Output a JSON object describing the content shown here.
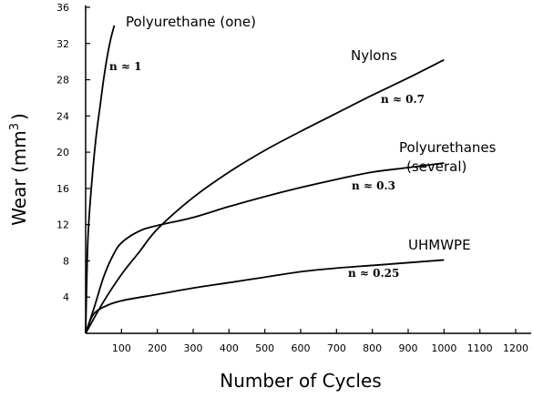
{
  "chart_data": {
    "type": "line",
    "xlabel": "Number of Cycles",
    "ylabel": "Wear (mm",
    "ylabel_sup": "3",
    "ylabel_close": ")",
    "xlim": [
      0,
      1200
    ],
    "ylim": [
      0,
      36
    ],
    "xticks": [
      100,
      200,
      300,
      400,
      500,
      600,
      700,
      800,
      900,
      1000,
      1100,
      1200
    ],
    "yticks": [
      4,
      8,
      12,
      16,
      20,
      24,
      28,
      32,
      36
    ],
    "grid": false,
    "series": [
      {
        "name": "Polyurethane (one)",
        "label_lines": [
          "Polyurethane (one)"
        ],
        "exponent": "n ≈ 1",
        "x": [
          0,
          5,
          10,
          20,
          30,
          40,
          50,
          60,
          70,
          80
        ],
        "y": [
          0,
          9,
          13,
          18,
          22,
          25,
          28,
          30.5,
          32.5,
          34
        ]
      },
      {
        "name": "Nylons",
        "label_lines": [
          "Nylons"
        ],
        "exponent": "n ≈ 0.7",
        "x": [
          0,
          50,
          100,
          150,
          200,
          300,
          400,
          500,
          600,
          700,
          800,
          900,
          1000
        ],
        "y": [
          0,
          3.5,
          6.5,
          9,
          11.5,
          15,
          17.8,
          20.2,
          22.3,
          24.3,
          26.3,
          28.2,
          30.2
        ]
      },
      {
        "name": "Polyurethanes (several)",
        "label_lines": [
          "Polyurethanes",
          "(several)"
        ],
        "exponent": "n ≈ 0.3",
        "x": [
          0,
          25,
          50,
          75,
          100,
          150,
          200,
          300,
          400,
          500,
          600,
          700,
          800,
          900,
          1000
        ],
        "y": [
          0,
          3,
          6.2,
          8.5,
          10,
          11.3,
          11.9,
          12.8,
          14,
          15.1,
          16.1,
          17,
          17.8,
          18.3,
          18.8
        ]
      },
      {
        "name": "UHMWPE",
        "label_lines": [
          "UHMWPE"
        ],
        "exponent": "n ≈ 0.25",
        "x": [
          0,
          20,
          50,
          100,
          200,
          300,
          400,
          500,
          600,
          700,
          800,
          900,
          1000
        ],
        "y": [
          0,
          2,
          2.9,
          3.6,
          4.3,
          5,
          5.6,
          6.2,
          6.8,
          7.2,
          7.5,
          7.8,
          8.1
        ]
      }
    ]
  }
}
